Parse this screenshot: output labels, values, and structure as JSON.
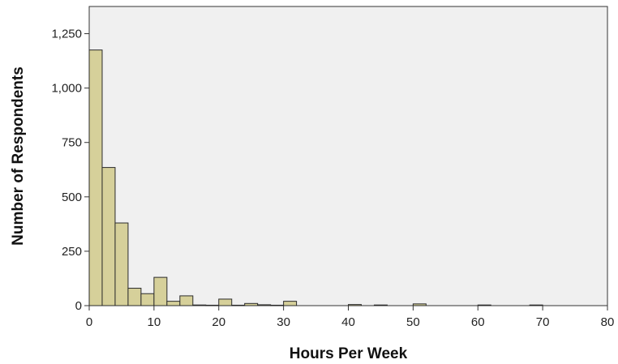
{
  "chart_data": {
    "type": "bar",
    "xlabel": "Hours Per Week",
    "ylabel": "Number of Respondents",
    "xlim": [
      0,
      80
    ],
    "ylim": [
      0,
      1375
    ],
    "bin_width": 2,
    "grid": false,
    "x_ticks": [
      {
        "value": 0,
        "label": "0"
      },
      {
        "value": 10,
        "label": "10"
      },
      {
        "value": 20,
        "label": "20"
      },
      {
        "value": 30,
        "label": "30"
      },
      {
        "value": 40,
        "label": "40"
      },
      {
        "value": 50,
        "label": "50"
      },
      {
        "value": 60,
        "label": "60"
      },
      {
        "value": 70,
        "label": "70"
      },
      {
        "value": 80,
        "label": "80"
      }
    ],
    "y_ticks": [
      {
        "value": 0,
        "label": "0"
      },
      {
        "value": 250,
        "label": "250"
      },
      {
        "value": 500,
        "label": "500"
      },
      {
        "value": 750,
        "label": "750"
      },
      {
        "value": 1000,
        "label": "1,000"
      },
      {
        "value": 1250,
        "label": "1,250"
      }
    ],
    "bins": [
      {
        "x0": 0,
        "x1": 2,
        "count": 1175
      },
      {
        "x0": 2,
        "x1": 4,
        "count": 635
      },
      {
        "x0": 4,
        "x1": 6,
        "count": 380
      },
      {
        "x0": 6,
        "x1": 8,
        "count": 80
      },
      {
        "x0": 8,
        "x1": 10,
        "count": 55
      },
      {
        "x0": 10,
        "x1": 12,
        "count": 130
      },
      {
        "x0": 12,
        "x1": 14,
        "count": 20
      },
      {
        "x0": 14,
        "x1": 16,
        "count": 45
      },
      {
        "x0": 16,
        "x1": 18,
        "count": 3
      },
      {
        "x0": 18,
        "x1": 20,
        "count": 2
      },
      {
        "x0": 20,
        "x1": 22,
        "count": 30
      },
      {
        "x0": 22,
        "x1": 24,
        "count": 2
      },
      {
        "x0": 24,
        "x1": 26,
        "count": 10
      },
      {
        "x0": 26,
        "x1": 28,
        "count": 4
      },
      {
        "x0": 28,
        "x1": 30,
        "count": 2
      },
      {
        "x0": 30,
        "x1": 32,
        "count": 20
      },
      {
        "x0": 40,
        "x1": 42,
        "count": 5
      },
      {
        "x0": 44,
        "x1": 46,
        "count": 3
      },
      {
        "x0": 50,
        "x1": 52,
        "count": 8
      },
      {
        "x0": 60,
        "x1": 62,
        "count": 3
      },
      {
        "x0": 68,
        "x1": 70,
        "count": 3
      }
    ],
    "colors": {
      "bar_fill": "#d6d09a",
      "bar_stroke": "#2b2b2b",
      "plot_background": "#f0f0f0",
      "axis": "#333333"
    }
  }
}
